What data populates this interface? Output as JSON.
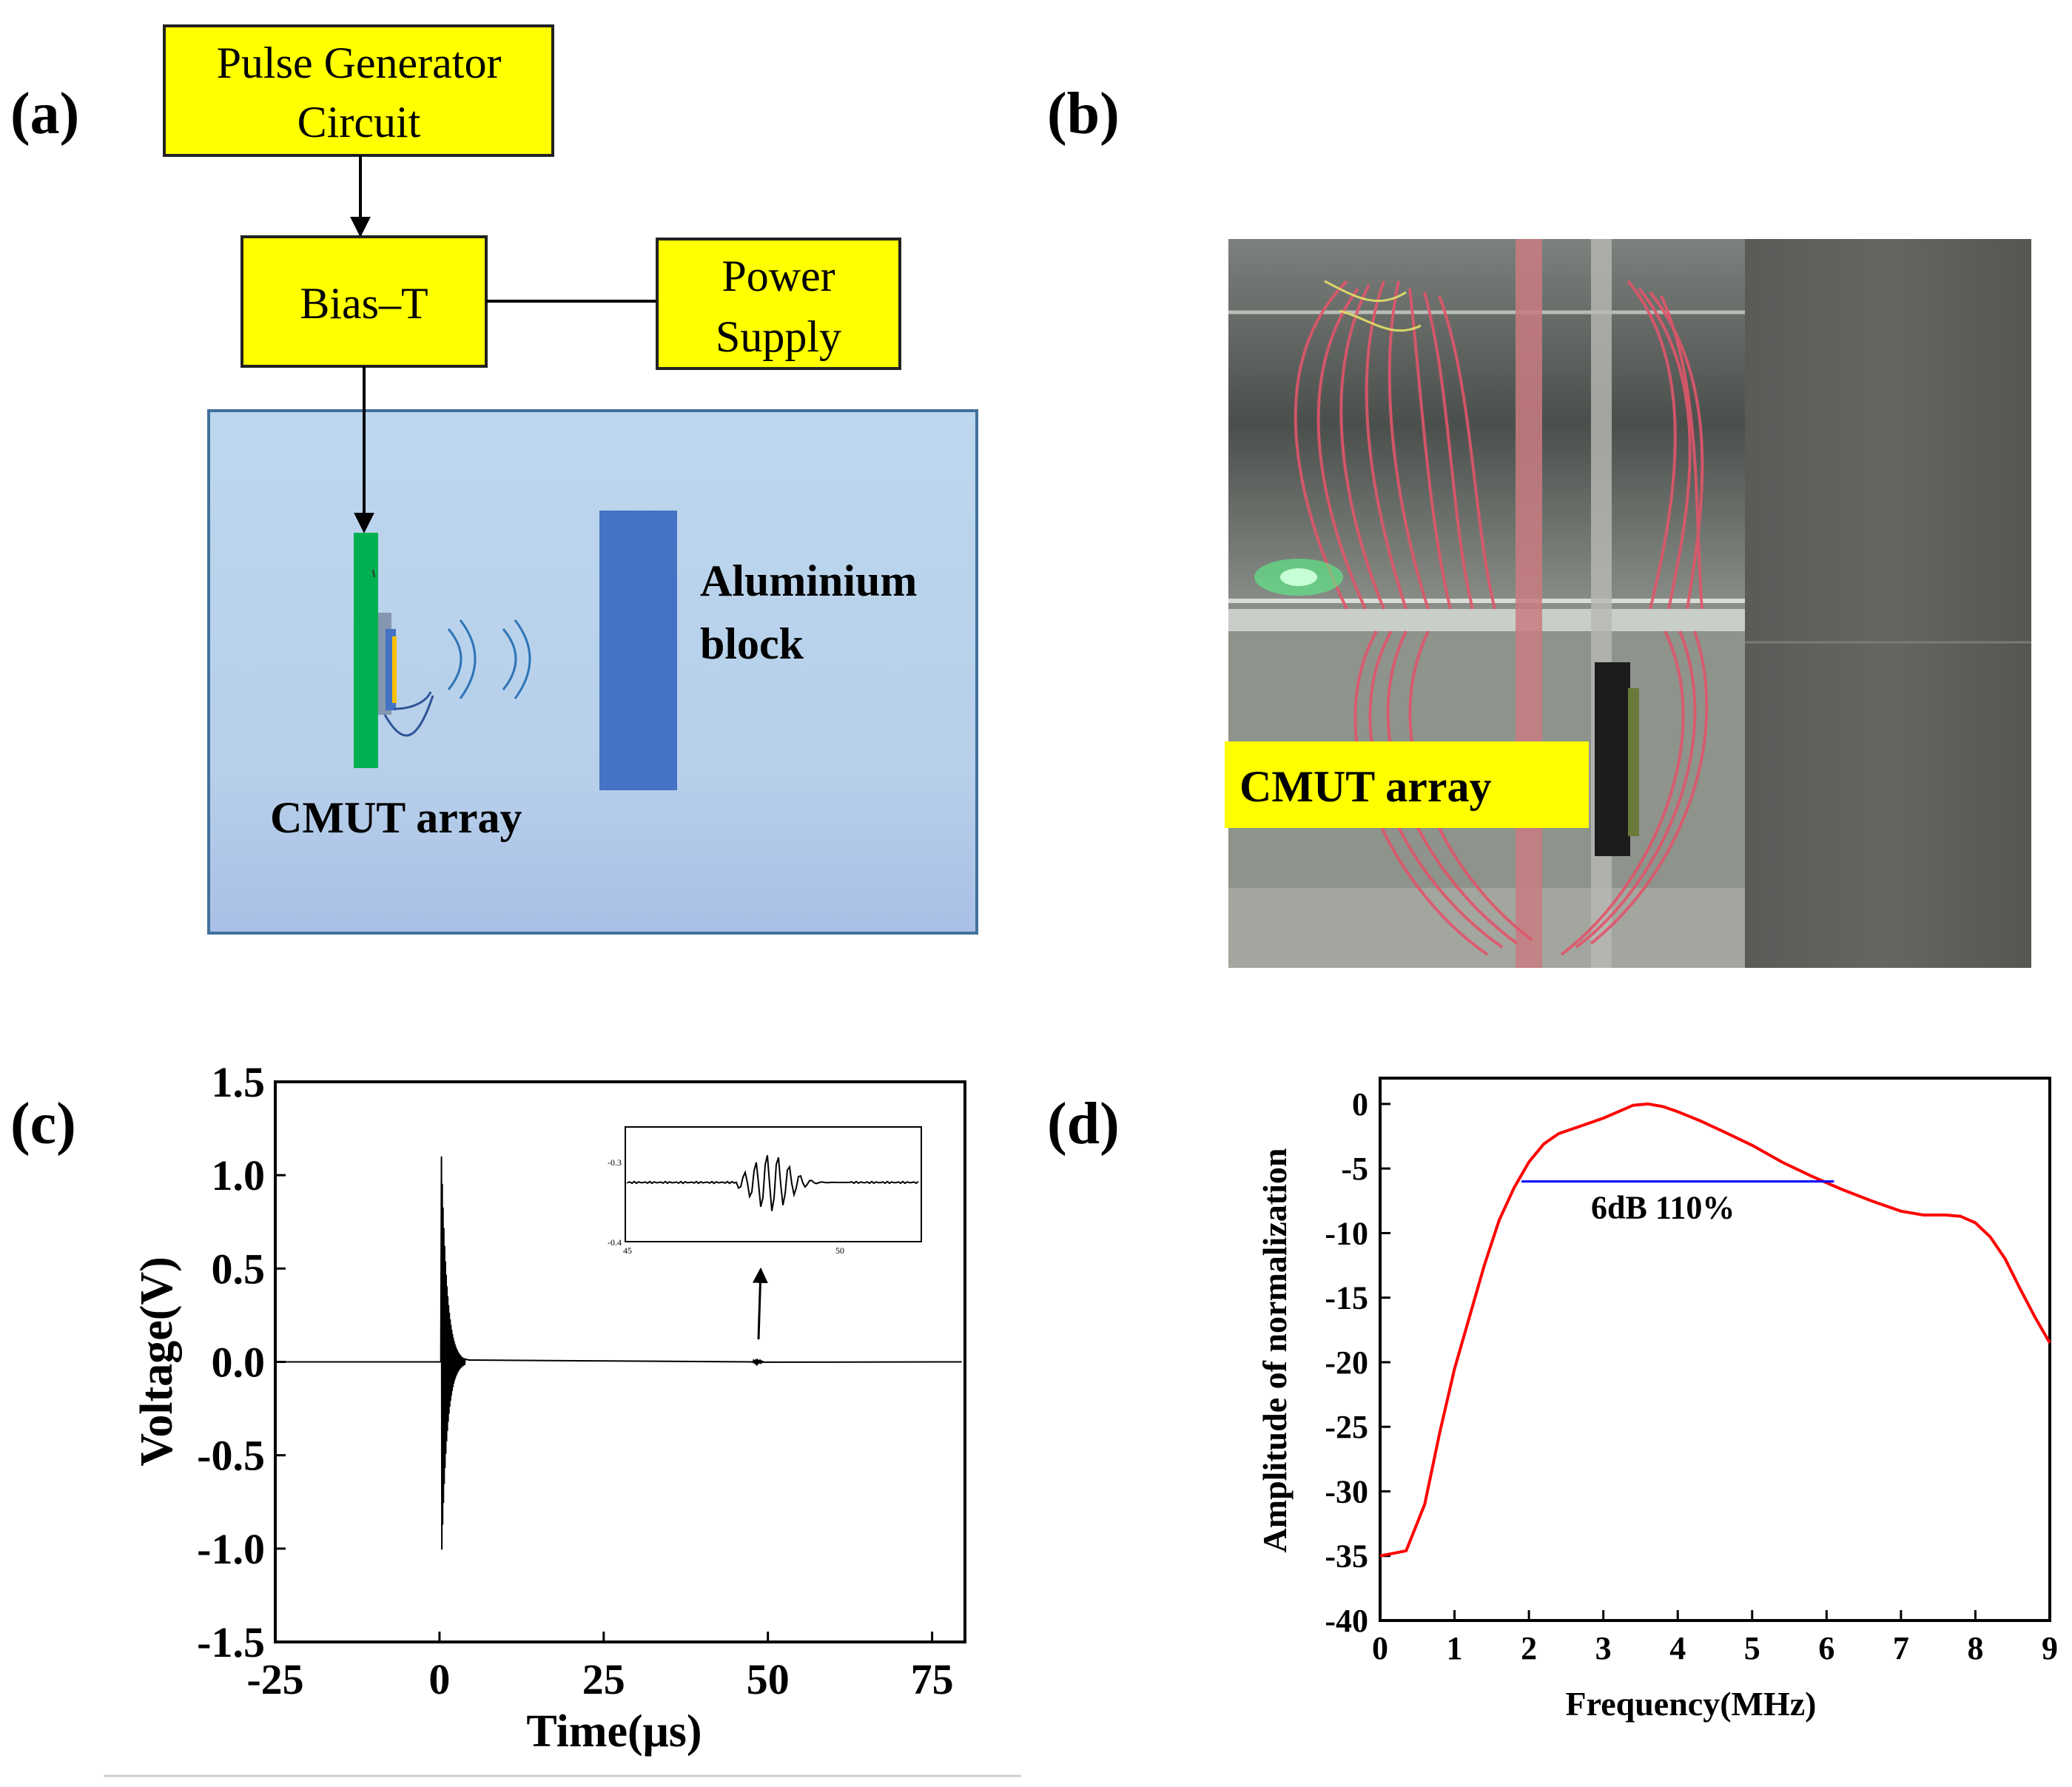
{
  "panels": {
    "a": {
      "label": "(a)",
      "pulse_generator": {
        "line1": "Pulse Generator",
        "line2": "Circuit"
      },
      "bias_t": "Bias–T",
      "power_supply": {
        "line1": "Power",
        "line2": "Supply"
      },
      "aluminium": {
        "line1": "Aluminium",
        "line2": "block"
      },
      "cmut": "CMUT array",
      "colors": {
        "box_fill": "#ffff00",
        "tank_fill": "#bdd7ee",
        "block": "#4472c4",
        "pcb": "#00b050"
      }
    },
    "b": {
      "label": "(b)",
      "cmut_label": "CMUT array",
      "label_fill": "#ffff00"
    },
    "c": {
      "label": "(c)"
    },
    "d": {
      "label": "(d)"
    }
  },
  "chart_data": [
    {
      "type": "line",
      "panel": "(c)",
      "xlabel": "Time(μs)",
      "ylabel": "Voltage(V)",
      "xlim": [
        -25,
        80
      ],
      "ylim": [
        -1.5,
        1.5
      ],
      "xticks": [
        "-25",
        "0",
        "25",
        "50",
        "75"
      ],
      "yticks": [
        "1.5",
        "1.0",
        "0.5",
        "0.0",
        "-0.5",
        "-1.0",
        "-1.5"
      ],
      "line_color": "#000000",
      "echo_time": 48.5,
      "main_pulse": {
        "time": 0.5,
        "max": 1.1,
        "min": -1.08
      },
      "inset": {
        "ytick_labels": [
          "-0.3",
          "-0.4"
        ],
        "xtick_labels": [
          "45",
          "50"
        ]
      }
    },
    {
      "type": "line",
      "panel": "(d)",
      "xlabel": "Frequency(MHz)",
      "ylabel": "Amplitude of normalization",
      "xlim": [
        0,
        9
      ],
      "ylim": [
        -40,
        2
      ],
      "xticks": [
        "0",
        "1",
        "2",
        "3",
        "4",
        "5",
        "6",
        "7",
        "8",
        "9"
      ],
      "yticks": [
        "0",
        "-5",
        "-10",
        "-15",
        "-20",
        "-25",
        "-30",
        "-35",
        "-40"
      ],
      "series": [
        {
          "color": "#ff0000",
          "x": [
            0,
            0.35,
            0.6,
            0.8,
            1.0,
            1.2,
            1.4,
            1.6,
            1.8,
            2.0,
            2.2,
            2.4,
            2.6,
            2.8,
            3.0,
            3.2,
            3.4,
            3.6,
            3.8,
            4.0,
            4.3,
            4.6,
            5.0,
            5.4,
            5.8,
            6.2,
            6.6,
            7.0,
            7.3,
            7.6,
            7.8,
            8.0,
            8.2,
            8.4,
            8.6,
            8.8,
            9.0
          ],
          "y": [
            -35,
            -34.6,
            -31,
            -25.5,
            -20.5,
            -16.5,
            -12.5,
            -9,
            -6.5,
            -4.5,
            -3.1,
            -2.3,
            -1.9,
            -1.5,
            -1.1,
            -0.6,
            -0.1,
            0,
            -0.2,
            -0.6,
            -1.3,
            -2.1,
            -3.2,
            -4.5,
            -5.6,
            -6.6,
            -7.5,
            -8.3,
            -8.6,
            -8.6,
            -8.7,
            -9.2,
            -10.3,
            -12,
            -14.3,
            -16.5,
            -18.5
          ]
        }
      ],
      "bandwidth_line": {
        "x": [
          1.9,
          6.1
        ],
        "y": -6,
        "color": "#0000ff"
      },
      "annotation": "6dB 110%"
    }
  ]
}
